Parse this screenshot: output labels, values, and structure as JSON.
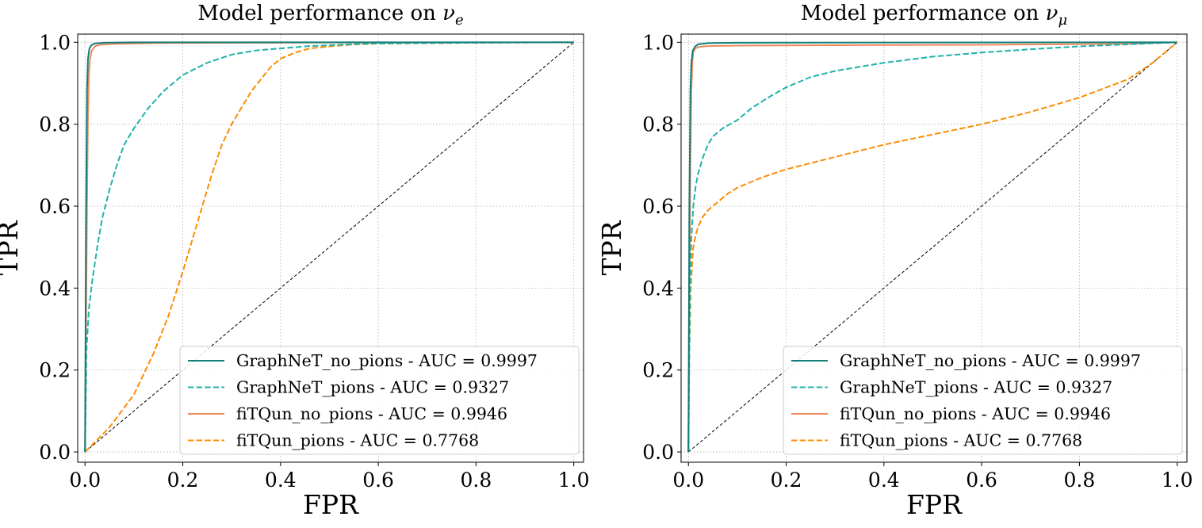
{
  "chart_data": [
    {
      "type": "line",
      "title": "Model performance on ",
      "title_symbol": "ν",
      "title_subscript": "e",
      "xlabel": "FPR",
      "ylabel": "TPR",
      "xlim": [
        -0.015,
        1.02
      ],
      "ylim": [
        -0.025,
        1.02
      ],
      "xticks": [
        0.0,
        0.2,
        0.4,
        0.6,
        0.8,
        1.0
      ],
      "xtick_labels": [
        "0.0",
        "0.2",
        "0.4",
        "0.6",
        "0.8",
        "1.0"
      ],
      "yticks": [
        0.0,
        0.2,
        0.4,
        0.6,
        0.8,
        1.0
      ],
      "ytick_labels": [
        "0.0",
        "0.2",
        "0.4",
        "0.6",
        "0.8",
        "1.0"
      ],
      "grid": true,
      "legend_position": "lower-right",
      "diagonal": {
        "x": [
          0,
          1
        ],
        "y": [
          0,
          1
        ],
        "color": "#000000",
        "style": "dashed"
      },
      "series": [
        {
          "name": "GraphNeT_no_pions - AUC = 0.9997",
          "color": "#0f7f7a",
          "style": "solid",
          "x": [
            0,
            0.002,
            0.004,
            0.006,
            0.009,
            0.013,
            0.02,
            0.04,
            0.1,
            1.0
          ],
          "y": [
            0,
            0.55,
            0.88,
            0.96,
            0.985,
            0.993,
            0.997,
            0.999,
            1.0,
            1.0
          ]
        },
        {
          "name": "GraphNeT_pions - AUC = 0.9327",
          "color": "#20b2aa",
          "style": "dashed",
          "x": [
            0,
            0.003,
            0.008,
            0.015,
            0.025,
            0.035,
            0.05,
            0.065,
            0.08,
            0.1,
            0.13,
            0.16,
            0.2,
            0.25,
            0.3,
            0.35,
            0.4,
            0.45,
            0.5,
            0.6,
            0.8,
            1.0
          ],
          "y": [
            0,
            0.25,
            0.35,
            0.42,
            0.5,
            0.57,
            0.64,
            0.7,
            0.75,
            0.79,
            0.84,
            0.88,
            0.92,
            0.95,
            0.97,
            0.98,
            0.985,
            0.99,
            0.993,
            0.997,
            0.999,
            1.0
          ]
        },
        {
          "name": "fiTQun_no_pions - AUC = 0.9946",
          "color": "#f08a5d",
          "style": "solid",
          "x": [
            0,
            0.002,
            0.004,
            0.006,
            0.008,
            0.01,
            0.014,
            0.02,
            0.03,
            0.06,
            0.15,
            0.4,
            1.0
          ],
          "y": [
            0,
            0.3,
            0.6,
            0.82,
            0.92,
            0.96,
            0.98,
            0.99,
            0.994,
            0.996,
            0.998,
            0.999,
            1.0
          ]
        },
        {
          "name": "fiTQun_pions - AUC = 0.7768",
          "color": "#ff8c00",
          "style": "dashed",
          "x": [
            0,
            0.05,
            0.1,
            0.14,
            0.17,
            0.2,
            0.22,
            0.24,
            0.26,
            0.28,
            0.3,
            0.32,
            0.34,
            0.36,
            0.38,
            0.4,
            0.43,
            0.46,
            0.5,
            0.55,
            0.6,
            0.7,
            0.8,
            1.0
          ],
          "y": [
            0,
            0.06,
            0.14,
            0.24,
            0.33,
            0.44,
            0.52,
            0.6,
            0.68,
            0.75,
            0.8,
            0.84,
            0.88,
            0.91,
            0.94,
            0.96,
            0.975,
            0.985,
            0.99,
            0.995,
            0.997,
            0.998,
            0.999,
            1.0
          ]
        }
      ]
    },
    {
      "type": "line",
      "title": "Model performance on ",
      "title_symbol": "ν",
      "title_subscript": "μ",
      "xlabel": "FPR",
      "ylabel": "TPR",
      "xlim": [
        -0.015,
        1.02
      ],
      "ylim": [
        -0.025,
        1.02
      ],
      "xticks": [
        0.0,
        0.2,
        0.4,
        0.6,
        0.8,
        1.0
      ],
      "xtick_labels": [
        "0.0",
        "0.2",
        "0.4",
        "0.6",
        "0.8",
        "1.0"
      ],
      "yticks": [
        0.0,
        0.2,
        0.4,
        0.6,
        0.8,
        1.0
      ],
      "ytick_labels": [
        "0.0",
        "0.2",
        "0.4",
        "0.6",
        "0.8",
        "1.0"
      ],
      "grid": true,
      "legend_position": "lower-right",
      "diagonal": {
        "x": [
          0,
          1
        ],
        "y": [
          0,
          1
        ],
        "color": "#000000",
        "style": "dashed"
      },
      "series": [
        {
          "name": "GraphNeT_no_pions - AUC = 0.9997",
          "color": "#0f7f7a",
          "style": "solid",
          "x": [
            0,
            0.002,
            0.004,
            0.006,
            0.009,
            0.014,
            0.02,
            0.04,
            0.1,
            1.0
          ],
          "y": [
            0,
            0.6,
            0.88,
            0.95,
            0.98,
            0.99,
            0.995,
            0.998,
            0.999,
            1.0
          ]
        },
        {
          "name": "GraphNeT_pions - AUC = 0.9327",
          "color": "#20b2aa",
          "style": "dashed",
          "x": [
            0,
            0.003,
            0.006,
            0.01,
            0.015,
            0.02,
            0.03,
            0.04,
            0.05,
            0.07,
            0.1,
            0.13,
            0.17,
            0.2,
            0.25,
            0.3,
            0.4,
            0.5,
            0.6,
            0.7,
            0.8,
            0.9,
            1.0
          ],
          "y": [
            0,
            0.4,
            0.52,
            0.6,
            0.65,
            0.68,
            0.72,
            0.75,
            0.77,
            0.79,
            0.81,
            0.84,
            0.87,
            0.89,
            0.915,
            0.93,
            0.95,
            0.965,
            0.975,
            0.983,
            0.99,
            0.995,
            1.0
          ]
        },
        {
          "name": "fiTQun_no_pions - AUC = 0.9946",
          "color": "#f08a5d",
          "style": "solid",
          "x": [
            0,
            0.002,
            0.004,
            0.006,
            0.008,
            0.01,
            0.014,
            0.02,
            0.03,
            0.05,
            0.1,
            0.3,
            0.6,
            0.9,
            1.0
          ],
          "y": [
            0,
            0.4,
            0.7,
            0.88,
            0.95,
            0.975,
            0.985,
            0.988,
            0.99,
            0.991,
            0.992,
            0.993,
            0.994,
            0.996,
            1.0
          ]
        },
        {
          "name": "fiTQun_pions - AUC = 0.7768",
          "color": "#ff8c00",
          "style": "dashed",
          "x": [
            0,
            0.002,
            0.005,
            0.008,
            0.01,
            0.015,
            0.02,
            0.03,
            0.04,
            0.06,
            0.08,
            0.1,
            0.12,
            0.15,
            0.2,
            0.25,
            0.3,
            0.4,
            0.5,
            0.6,
            0.7,
            0.8,
            0.9,
            0.95,
            1.0
          ],
          "y": [
            0,
            0.25,
            0.4,
            0.47,
            0.5,
            0.53,
            0.55,
            0.575,
            0.59,
            0.61,
            0.63,
            0.645,
            0.655,
            0.67,
            0.69,
            0.705,
            0.72,
            0.75,
            0.775,
            0.8,
            0.83,
            0.865,
            0.91,
            0.95,
            1.0
          ]
        }
      ]
    }
  ]
}
